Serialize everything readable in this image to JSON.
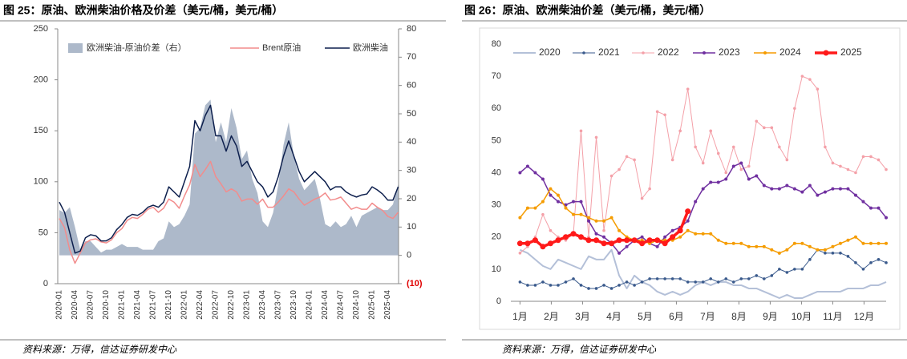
{
  "chart_data": [
    {
      "type": "line",
      "title": "图 25：原油、欧洲柴油价格及价差（美元/桶，美元/桶）",
      "source": "资料来源：万得，信达证券研发中心",
      "categories": [
        "2020-01",
        null,
        null,
        "2020-04",
        null,
        null,
        "2020-07",
        null,
        null,
        "2020-10",
        null,
        null,
        "2021-01",
        null,
        null,
        "2021-04",
        null,
        null,
        "2021-07",
        null,
        null,
        "2021-10",
        null,
        null,
        "2022-01",
        null,
        null,
        "2022-04",
        null,
        null,
        "2022-07",
        null,
        null,
        "2022-10",
        null,
        null,
        "2023-01",
        null,
        null,
        "2023-04",
        null,
        null,
        "2023-07",
        null,
        null,
        "2023-10",
        null,
        null,
        "2024-01",
        null,
        null,
        "2024-04",
        null,
        null,
        "2024-07",
        null,
        null,
        "2024-10",
        null,
        null,
        "2025-01",
        null,
        null,
        "2025-04",
        null,
        null
      ],
      "series": [
        {
          "name": "欧洲柴油-原油价差（右）",
          "color": "#adb9ca",
          "axis": "y2",
          "style": "area",
          "values": [
            16,
            15,
            17,
            10,
            2,
            5,
            5,
            3,
            1,
            2,
            2,
            3,
            4,
            3,
            3,
            3,
            2,
            2,
            2,
            5,
            6,
            12,
            10,
            11,
            14,
            18,
            43,
            45,
            53,
            55,
            40,
            47,
            40,
            52,
            45,
            34,
            37,
            27,
            22,
            12,
            10,
            15,
            25,
            39,
            47,
            35,
            27,
            23,
            25,
            27,
            20,
            11,
            10,
            12,
            10,
            11,
            14,
            10,
            14,
            15,
            16,
            17,
            16,
            16,
            18,
            25
          ]
        },
        {
          "name": "Brent原油",
          "color": "#f28c8c",
          "style": "line",
          "values": [
            64,
            55,
            33,
            20,
            30,
            40,
            43,
            44,
            41,
            40,
            43,
            50,
            54,
            62,
            65,
            64,
            68,
            73,
            75,
            70,
            74,
            83,
            80,
            74,
            86,
            97,
            117,
            105,
            112,
            120,
            105,
            98,
            90,
            93,
            90,
            81,
            83,
            83,
            78,
            83,
            75,
            75,
            80,
            86,
            93,
            90,
            83,
            77,
            80,
            83,
            85,
            89,
            82,
            83,
            85,
            79,
            73,
            75,
            73,
            73,
            79,
            75,
            72,
            66,
            64,
            70
          ]
        },
        {
          "name": "欧洲柴油",
          "color": "#0d1f4d",
          "style": "line",
          "values": [
            80,
            70,
            50,
            30,
            32,
            45,
            48,
            47,
            42,
            42,
            45,
            53,
            58,
            65,
            68,
            67,
            70,
            75,
            77,
            75,
            80,
            95,
            90,
            85,
            100,
            115,
            160,
            150,
            165,
            175,
            145,
            145,
            130,
            145,
            135,
            115,
            120,
            110,
            100,
            95,
            85,
            90,
            105,
            125,
            140,
            125,
            110,
            100,
            105,
            110,
            105,
            100,
            92,
            95,
            95,
            90,
            87,
            85,
            87,
            88,
            95,
            92,
            88,
            82,
            82,
            95
          ]
        }
      ],
      "ylim": [
        0,
        250
      ],
      "yticks": [
        0,
        50,
        100,
        150,
        200,
        250
      ],
      "y2lim": [
        -10,
        80
      ],
      "y2ticks": [
        {
          "value": -10,
          "label": "(10)"
        },
        0,
        10,
        20,
        30,
        40,
        50,
        60,
        70,
        80
      ],
      "y2_negative_color": "#e00000",
      "legend": "top"
    },
    {
      "type": "line",
      "title": "图 26：原油、欧洲柴油价差（美元/桶，美元/桶）",
      "source": "资料来源：万得，信达证券研发中心",
      "x": [
        0,
        1,
        2,
        3,
        4,
        5,
        6,
        7,
        8,
        9,
        10,
        11,
        12,
        13,
        14,
        15,
        16,
        17,
        18,
        19,
        20,
        21,
        22,
        23,
        24,
        25,
        26,
        27,
        28,
        29,
        30,
        31,
        32,
        33,
        34,
        35,
        36,
        37,
        38,
        39,
        40,
        41,
        42,
        43,
        44,
        45,
        46,
        47,
        48
      ],
      "xlim": [
        -1.2,
        48
      ],
      "xticks": [
        {
          "value": 0,
          "label": "1月"
        },
        {
          "value": 4.1,
          "label": "2月"
        },
        {
          "value": 8.2,
          "label": "3月"
        },
        {
          "value": 12.3,
          "label": "4月"
        },
        {
          "value": 16.4,
          "label": "5月"
        },
        {
          "value": 20.5,
          "label": "6月"
        },
        {
          "value": 24.6,
          "label": "7月"
        },
        {
          "value": 28.7,
          "label": "8月"
        },
        {
          "value": 32.8,
          "label": "9月"
        },
        {
          "value": 36.9,
          "label": "10月"
        },
        {
          "value": 41,
          "label": "11月"
        },
        {
          "value": 45.1,
          "label": "12月"
        }
      ],
      "ylim": [
        0,
        80
      ],
      "yticks": [
        0,
        10,
        20,
        30,
        40,
        50,
        60,
        70,
        80
      ],
      "legend": "top",
      "series": [
        {
          "name": "2020",
          "color": "#b4c0d8",
          "line_width": 2,
          "marker_size": 0,
          "values": [
            16,
            15,
            13,
            11,
            10,
            13,
            12,
            11,
            10,
            14,
            13,
            13,
            16,
            8,
            4,
            8,
            6,
            5,
            3,
            2,
            3,
            2,
            3,
            5,
            6,
            5,
            6,
            6,
            5,
            5,
            4,
            4,
            3,
            2,
            1,
            2,
            1,
            1,
            2,
            3,
            3,
            3,
            3,
            4,
            4,
            4,
            5,
            5,
            6
          ]
        },
        {
          "name": "2021",
          "color": "#3a5a8c",
          "line_width": 1,
          "marker_size": 1.8,
          "values": [
            6,
            5,
            5,
            6,
            5,
            5,
            6,
            7,
            5,
            4,
            4,
            5,
            4,
            5,
            6,
            5,
            6,
            7,
            7,
            7,
            7,
            7,
            6,
            6,
            6,
            7,
            6,
            7,
            6,
            7,
            7,
            8,
            7,
            8,
            10,
            9,
            10,
            10,
            13,
            16,
            15,
            15,
            15,
            14,
            12,
            10,
            12,
            13,
            12
          ]
        },
        {
          "name": "2022",
          "color": "#f4a0a8",
          "line_width": 1,
          "marker_size": 1.8,
          "values": [
            15,
            17,
            20,
            27,
            22,
            20,
            19,
            21,
            53,
            20,
            51,
            22,
            39,
            41,
            45,
            44,
            32,
            35,
            59,
            58,
            44,
            53,
            66,
            48,
            43,
            53,
            46,
            40,
            48,
            41,
            42,
            56,
            54,
            54,
            48,
            44,
            60,
            70,
            69,
            66,
            48,
            43,
            42,
            41,
            40,
            45,
            45,
            44,
            41
          ]
        },
        {
          "name": "2023",
          "color": "#7030a0",
          "line_width": 1.5,
          "marker_size": 2,
          "values": [
            40,
            42,
            40,
            38,
            33,
            31,
            30,
            31,
            31,
            25,
            21,
            20,
            18,
            15,
            17,
            19,
            20,
            18,
            17,
            20,
            22,
            23,
            25,
            31,
            35,
            37,
            37,
            38,
            42,
            43,
            38,
            39,
            36,
            35,
            35,
            36,
            35,
            34,
            36,
            33,
            34,
            35,
            35,
            35,
            33,
            31,
            29,
            29,
            26
          ]
        },
        {
          "name": "2024",
          "color": "#f59c00",
          "line_width": 1.5,
          "marker_size": 2,
          "values": [
            26,
            29,
            29,
            31,
            35,
            33,
            29,
            27,
            27,
            26,
            25,
            25,
            26,
            22,
            20,
            19,
            19,
            18,
            19,
            19,
            19,
            20,
            22,
            21,
            21,
            21,
            19,
            18,
            18,
            18,
            17,
            17,
            17,
            16,
            15,
            16,
            18,
            18,
            17,
            16,
            16,
            17,
            18,
            19,
            20,
            18,
            18,
            18,
            18
          ]
        },
        {
          "name": "2025",
          "color": "#ff1a1a",
          "line_width": 3.5,
          "marker_size": 3.5,
          "values": [
            18,
            18,
            19,
            17,
            18,
            19,
            20,
            21,
            20,
            19,
            19,
            18,
            18,
            19,
            19,
            19,
            18,
            19,
            19,
            18,
            20,
            22,
            28,
            null,
            null,
            null,
            null,
            null,
            null,
            null,
            null,
            null,
            null,
            null,
            null,
            null,
            null,
            null,
            null,
            null,
            null,
            null,
            null,
            null,
            null,
            null,
            null,
            null,
            null
          ]
        }
      ]
    }
  ]
}
